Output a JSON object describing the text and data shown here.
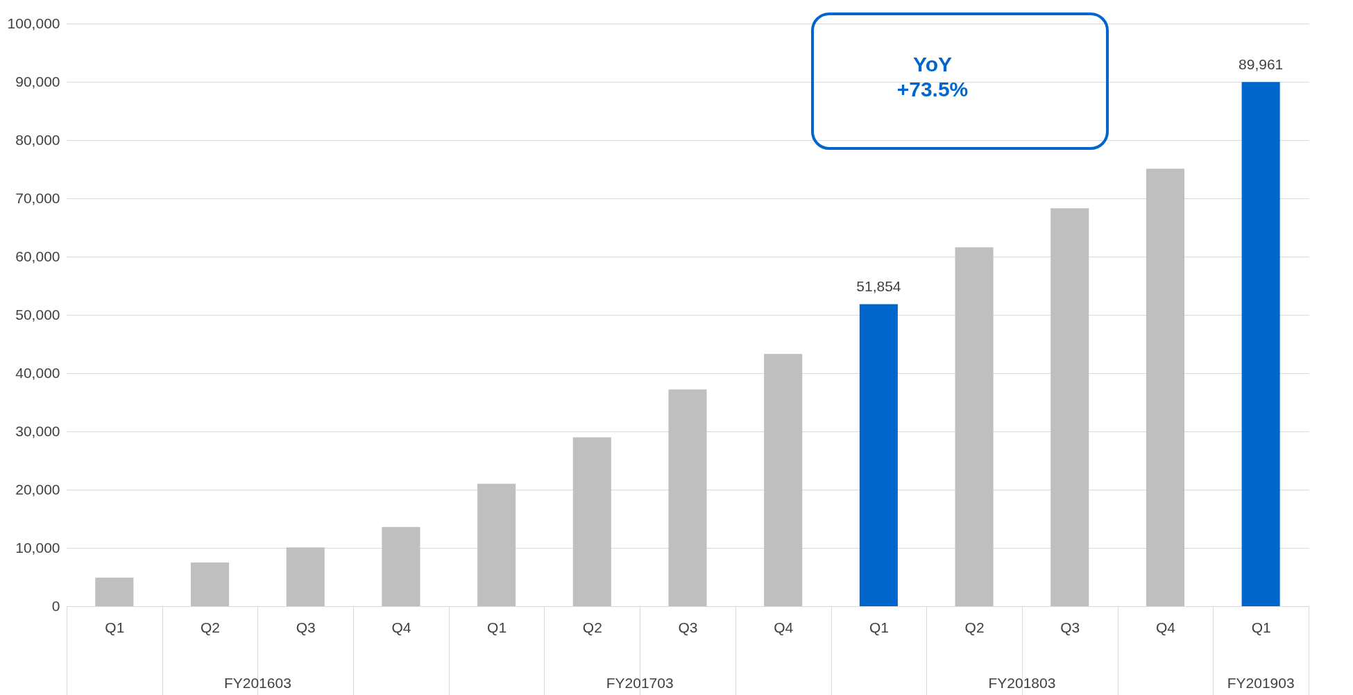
{
  "chart_data": {
    "type": "bar",
    "categories": [
      "Q1",
      "Q2",
      "Q3",
      "Q4",
      "Q1",
      "Q2",
      "Q3",
      "Q4",
      "Q1",
      "Q2",
      "Q3",
      "Q4",
      "Q1"
    ],
    "values": [
      4900,
      7500,
      10100,
      13600,
      21000,
      29000,
      37200,
      43300,
      51854,
      61600,
      68300,
      75100,
      89961
    ],
    "colors": [
      "#bfbfbf",
      "#bfbfbf",
      "#bfbfbf",
      "#bfbfbf",
      "#bfbfbf",
      "#bfbfbf",
      "#bfbfbf",
      "#bfbfbf",
      "#0066cc",
      "#bfbfbf",
      "#bfbfbf",
      "#bfbfbf",
      "#0066cc"
    ],
    "value_labels": [
      null,
      null,
      null,
      null,
      null,
      null,
      null,
      null,
      "51,854",
      null,
      null,
      null,
      "89,961"
    ],
    "ylim": [
      0,
      100000
    ],
    "yticks": [
      0,
      {
        "value": 10000,
        "label": "10,000"
      },
      {
        "value": 20000,
        "label": "20,000"
      },
      {
        "value": 30000,
        "label": "30,000"
      },
      {
        "value": 40000,
        "label": "40,000"
      },
      {
        "value": 50000,
        "label": "50,000"
      },
      {
        "value": 60000,
        "label": "60,000"
      },
      {
        "value": 70000,
        "label": "70,000"
      },
      {
        "value": 80000,
        "label": "80,000"
      },
      {
        "value": 90000,
        "label": "90,000"
      },
      {
        "value": 100000,
        "label": "100,000"
      }
    ],
    "grid": "y",
    "annotations": [
      "FY201603",
      "FY201703",
      "FY201803",
      "FY201903",
      "YoY\n+73.5%"
    ]
  }
}
